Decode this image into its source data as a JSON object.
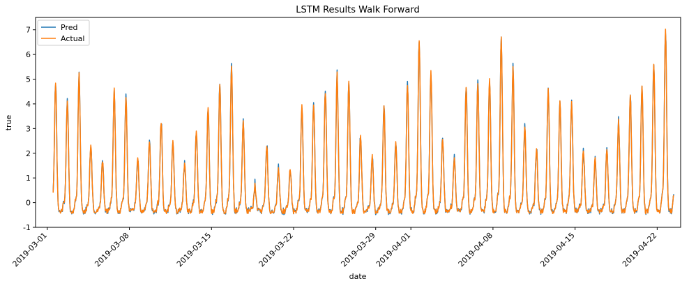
{
  "chart_data": {
    "type": "line",
    "title": "LSTM Results Walk Forward",
    "xlabel": "date",
    "ylabel": "true",
    "xlim": [
      "2019-02-28",
      "2019-04-24"
    ],
    "ylim": [
      -1,
      7.5
    ],
    "yticks": [
      -1,
      0,
      1,
      2,
      3,
      4,
      5,
      6,
      7
    ],
    "xticks": [
      "2019-03-01",
      "2019-03-08",
      "2019-03-15",
      "2019-03-22",
      "2019-03-29",
      "2019-04-01",
      "2019-04-08",
      "2019-04-15",
      "2019-04-22"
    ],
    "x_start": "2019-03-01T12:00",
    "x_end": "2019-04-23T10:00",
    "sample_interval_hours": 1,
    "legend_position": "top-left",
    "grid": false,
    "daily_peaks": [
      4.8,
      4.1,
      5.2,
      2.4,
      1.7,
      4.6,
      4.3,
      1.8,
      2.5,
      3.3,
      2.5,
      1.6,
      2.9,
      3.9,
      4.8,
      5.5,
      3.3,
      0.7,
      2.3,
      1.4,
      1.4,
      3.9,
      4.0,
      4.5,
      5.2,
      4.9,
      2.7,
      1.9,
      3.9,
      2.4,
      4.8,
      6.6,
      5.3,
      2.6,
      1.8,
      4.7,
      4.9,
      5.0,
      6.7,
      5.5,
      3.1,
      2.2,
      4.6,
      4.1,
      4.0,
      2.1,
      1.8,
      2.2,
      3.3,
      4.4,
      4.8,
      5.7,
      7.0
    ],
    "series": [
      {
        "name": "Pred",
        "color": "#1f77b4"
      },
      {
        "name": "Actual",
        "color": "#ff7f0e"
      }
    ]
  }
}
